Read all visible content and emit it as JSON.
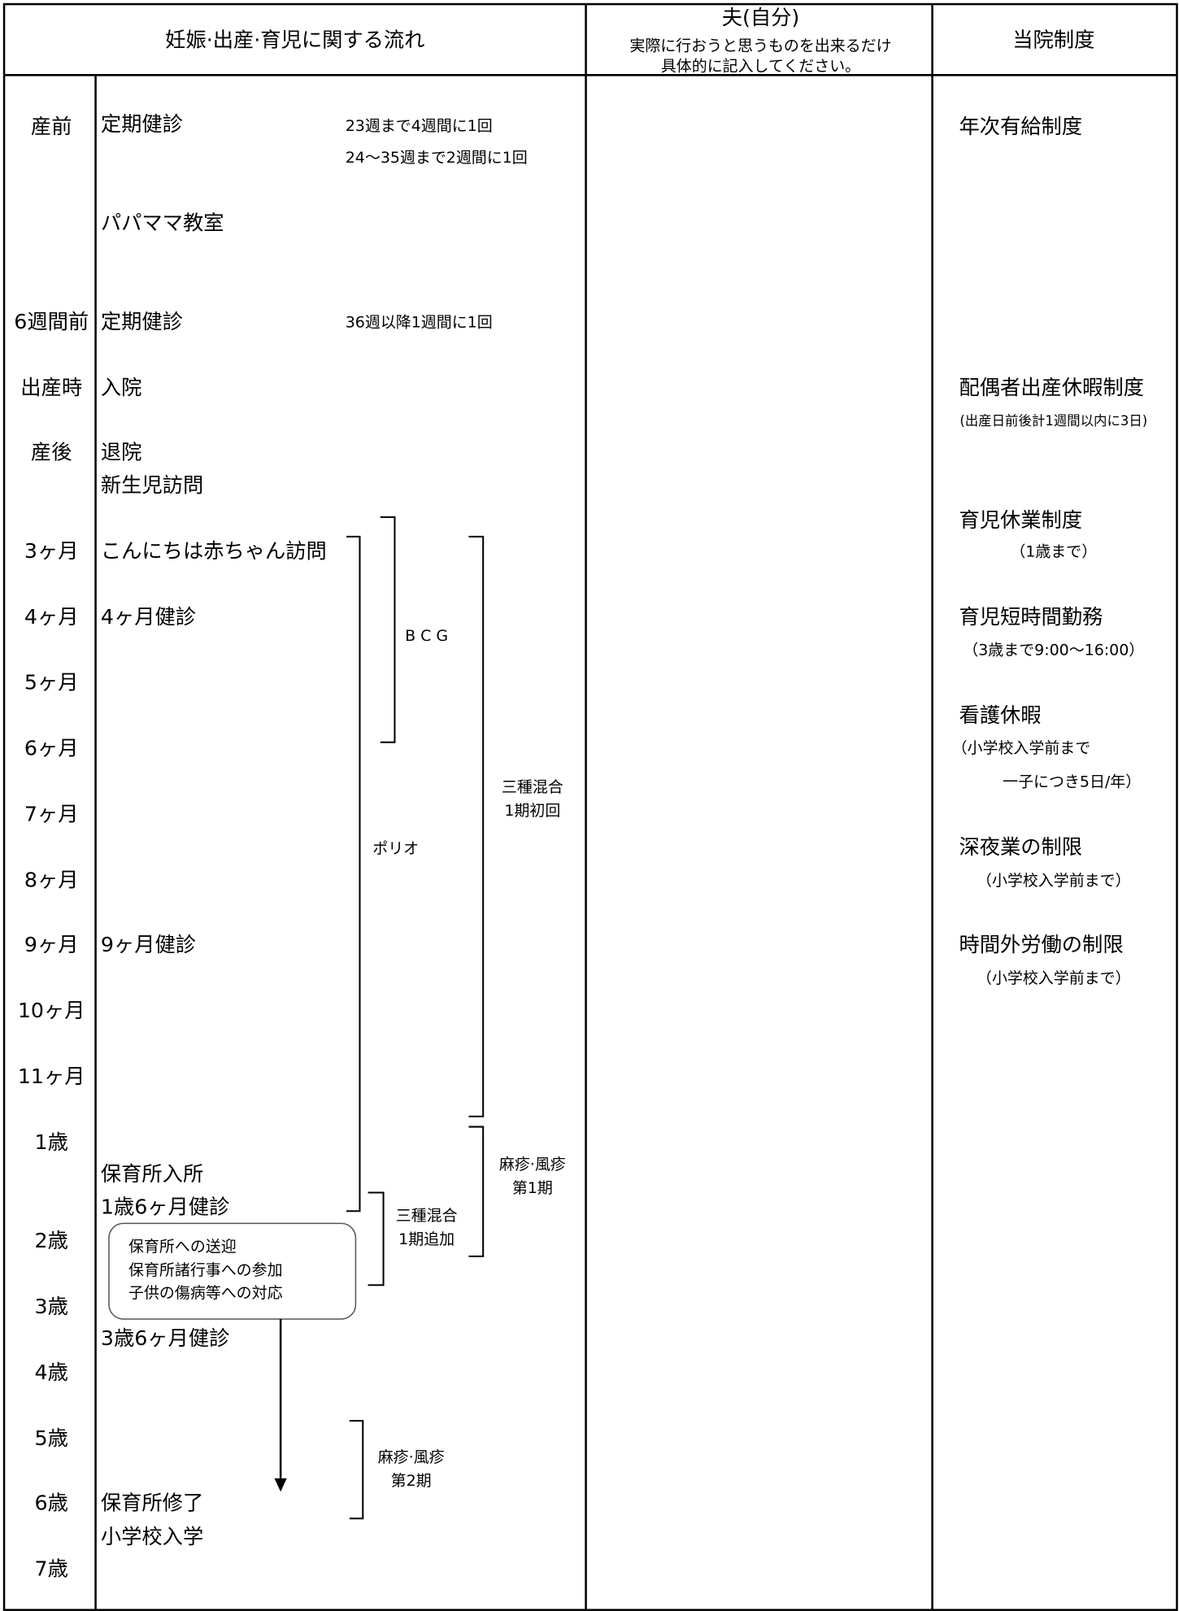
{
  "header": {
    "flow": "妊娠·出産·育児に関する流れ",
    "husband": "夫(自分)",
    "husband_note": [
      "実際に行おうと思うものを出来るだけ",
      "具体的に記入してください。"
    ],
    "policy": "当院制度"
  },
  "periods": [
    "産前",
    "6週間前",
    "出産時",
    "産後",
    "3ヶ月",
    "4ヶ月",
    "5ヶ月",
    "6ヶ月",
    "7ヶ月",
    "8ヶ月",
    "9ヶ月",
    "10ヶ月",
    "11ヶ月",
    "1歳",
    "2歳",
    "3歳",
    "4歳",
    "5歳",
    "6歳",
    "7歳"
  ],
  "events": [
    "定期健診",
    "パパママ教室",
    "定期健診",
    "入院",
    "退院",
    "新生児訪問",
    "こんにちは赤ちゃん訪問",
    "4ヶ月健診",
    "9ヶ月健診",
    "保育所入所",
    "1歳6ヶ月健診",
    "3歳6ヶ月健診",
    "保育所修了",
    "小学校入学"
  ],
  "event_notes": [
    "23週まで4週間に1回",
    "24～35週まで2週間に1回",
    "36週以降1週間に1回"
  ],
  "box": [
    "保育所への送迎",
    "保育所諸行事への参加",
    "子供の傷病等への対応"
  ],
  "vaccines": [
    {
      "label": [
        "B C G"
      ]
    },
    {
      "label": [
        "ポリオ"
      ]
    },
    {
      "label": [
        "三種混合",
        "1期初回"
      ]
    },
    {
      "label": [
        "麻疹·風疹",
        "第1期"
      ]
    },
    {
      "label": [
        "三種混合",
        "1期追加"
      ]
    },
    {
      "label": [
        "麻疹·風疹",
        "第2期"
      ]
    }
  ],
  "policies": [
    {
      "title": "年次有給制度"
    },
    {
      "title": "配偶者出産休暇制度",
      "note": [
        "(出産日前後計1週間以内に3日)"
      ]
    },
    {
      "title": "育児休業制度",
      "note": [
        "（1歳まで）"
      ]
    },
    {
      "title": "育児短時間勤務",
      "note": [
        "（3歳まで9:00～16:00）"
      ]
    },
    {
      "title": "看護休暇",
      "note": [
        "（小学校入学前まで",
        "一子につき5日/年）"
      ]
    },
    {
      "title": "深夜業の制限",
      "note": [
        "（小学校入学前まで）"
      ]
    },
    {
      "title": "時間外労働の制限",
      "note": [
        "（小学校入学前まで）"
      ]
    }
  ]
}
